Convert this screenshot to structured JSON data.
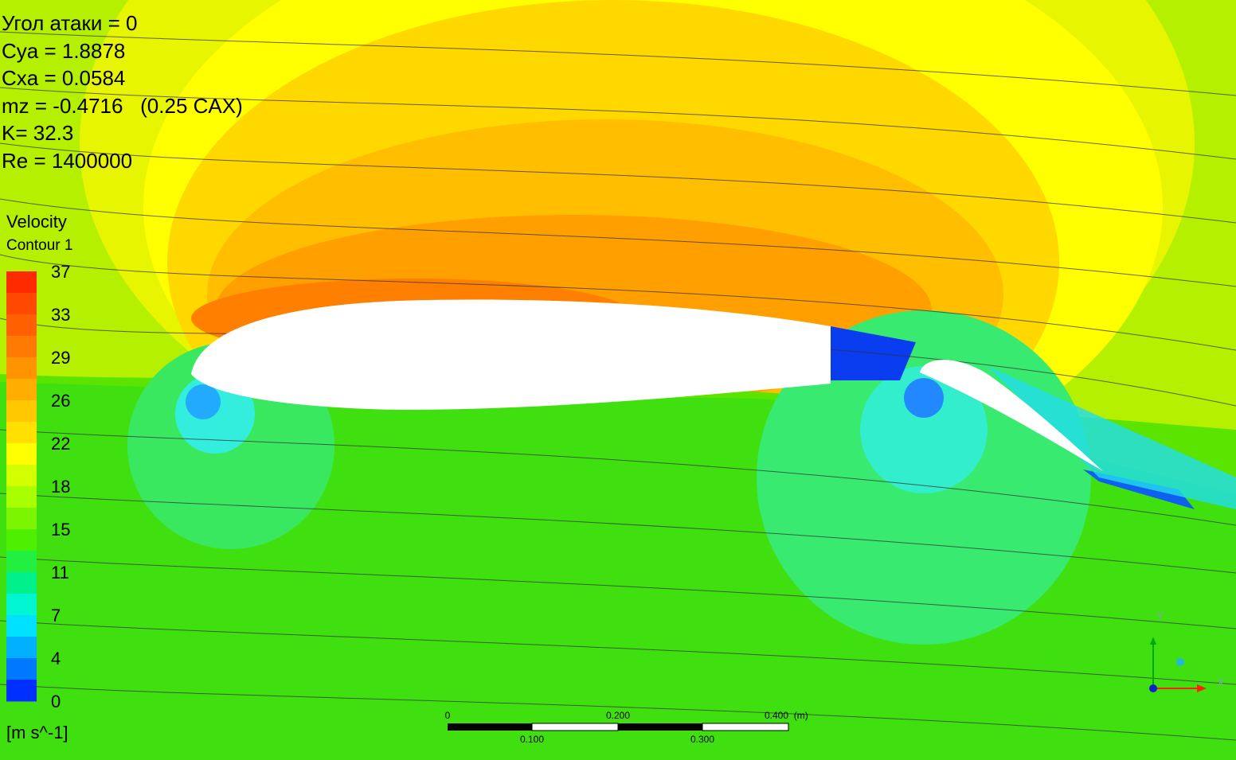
{
  "annotations": [
    "Угол атаки = 0",
    "Cya = 1.8878",
    "Cxa = 0.0584",
    "mz = -0.4716   (0.25 CAX)",
    "K= 32.3",
    "Re = 1400000"
  ],
  "legend": {
    "title": "Velocity",
    "subtitle": "Contour 1",
    "labels": [
      "37",
      "33",
      "29",
      "26",
      "22",
      "18",
      "15",
      "11",
      "7",
      "4",
      "0"
    ],
    "unit": "[m s^-1]"
  },
  "scale_bar": {
    "labels_top": [
      "0",
      "0.200",
      "0.400  (m)"
    ],
    "labels_bottom": [
      "0.100",
      "0.300"
    ]
  },
  "axes": {
    "x": "X",
    "y": "Y"
  }
}
